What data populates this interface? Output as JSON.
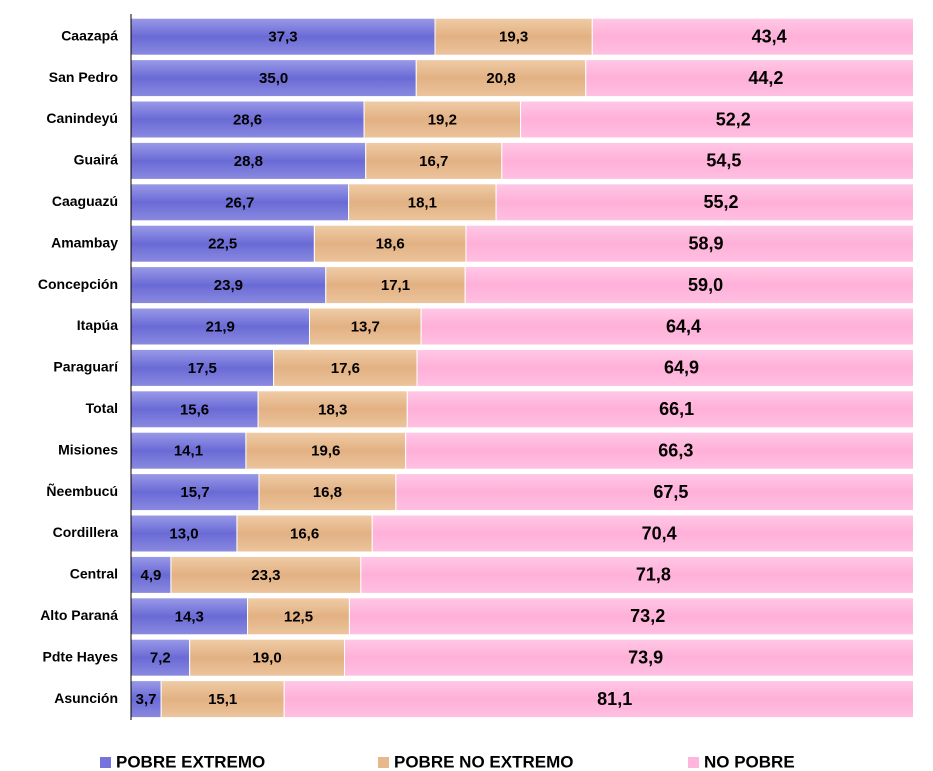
{
  "chart_data": {
    "type": "stacked-bar-horizontal",
    "categories": [
      "Caazapá",
      "San Pedro",
      "Canindeyú",
      "Guairá",
      "Caaguazú",
      "Amambay",
      "Concepción",
      "Itapúa",
      "Paraguarí",
      "Total",
      "Misiones",
      "Ñeembucú",
      "Cordillera",
      "Central",
      "Alto Paraná",
      "Pdte Hayes",
      "Asunción"
    ],
    "xlim": [
      0,
      100
    ],
    "legend": "bottom",
    "series": [
      {
        "name": "POBRE EXTREMO",
        "color": "#7474dc",
        "values": [
          37.3,
          35.0,
          28.6,
          28.8,
          26.7,
          22.5,
          23.9,
          21.9,
          17.5,
          15.6,
          14.1,
          15.7,
          13.0,
          4.9,
          14.3,
          7.2,
          3.7
        ],
        "value_labels": [
          "37,3",
          "35,0",
          "28,6",
          "28,8",
          "26,7",
          "22,5",
          "23,9",
          "21,9",
          "17,5",
          "15,6",
          "14,1",
          "15,7",
          "13,0",
          "4,9",
          "14,3",
          "7,2",
          "3,7"
        ]
      },
      {
        "name": "POBRE NO EXTREMO",
        "color": "#e6b98c",
        "values": [
          19.3,
          20.8,
          19.2,
          16.7,
          18.1,
          18.6,
          17.1,
          13.7,
          17.6,
          18.3,
          19.6,
          16.8,
          16.6,
          23.3,
          12.5,
          19.0,
          15.1
        ],
        "value_labels": [
          "19,3",
          "20,8",
          "19,2",
          "16,7",
          "18,1",
          "18,6",
          "17,1",
          "13,7",
          "17,6",
          "18,3",
          "19,6",
          "16,8",
          "16,6",
          "23,3",
          "12,5",
          "19,0",
          "15,1"
        ]
      },
      {
        "name": "NO POBRE",
        "color": "#ffb6dc",
        "values": [
          43.4,
          44.2,
          52.2,
          54.5,
          55.2,
          58.9,
          59.0,
          64.4,
          64.9,
          66.1,
          66.3,
          67.5,
          70.4,
          71.8,
          73.2,
          73.9,
          81.1
        ],
        "value_labels": [
          "43,4",
          "44,2",
          "52,2",
          "54,5",
          "55,2",
          "58,9",
          "59,0",
          "64,4",
          "64,9",
          "66,1",
          "66,3",
          "67,5",
          "70,4",
          "71,8",
          "73,2",
          "73,9",
          "81,1"
        ]
      }
    ]
  }
}
